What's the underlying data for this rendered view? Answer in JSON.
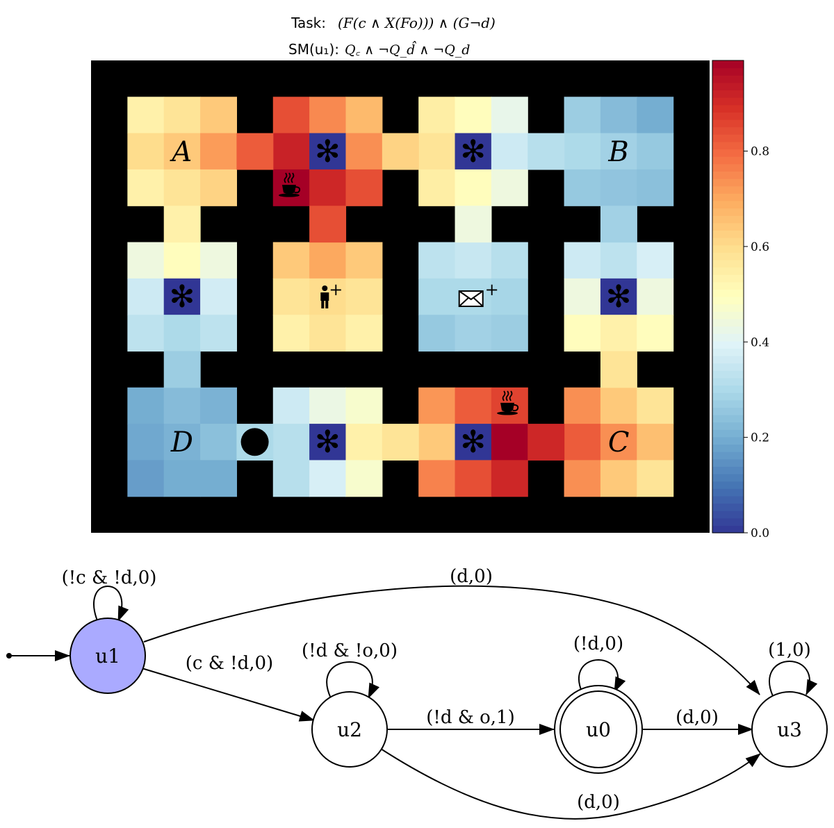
{
  "title": {
    "task_label": "Task:",
    "task_formula": "(F(c ∧ X(Fo))) ∧ (G¬d)",
    "sm_label": "SM(u₁):",
    "sm_formula": "Q꜀ ∧ ¬Q_d̂ ∧ ¬Q_d"
  },
  "colors": {
    "wall": "#000000",
    "stop_low": "#313695",
    "stop_high": "#a50026"
  },
  "grid": {
    "cols": 17,
    "rows": 13,
    "rooms": [
      {
        "cells": [
          [
            0.54,
            0.58,
            0.64
          ],
          [
            0.6,
            0.64,
            0.72
          ],
          [
            0.54,
            0.58,
            0.62
          ]
        ]
      },
      {
        "cells": [
          [
            0.84,
            0.75,
            0.67
          ],
          [
            0.92,
            0.0,
            0.74
          ],
          [
            0.99,
            0.91,
            0.84
          ]
        ]
      },
      {
        "cells": [
          [
            0.55,
            0.5,
            0.42
          ],
          [
            0.58,
            0.0,
            0.36
          ],
          [
            0.55,
            0.5,
            0.44
          ]
        ]
      },
      {
        "cells": [
          [
            0.27,
            0.23,
            0.2
          ],
          [
            0.3,
            0.28,
            0.26
          ],
          [
            0.26,
            0.25,
            0.24
          ]
        ]
      },
      {
        "cells": [
          [
            0.44,
            0.5,
            0.44
          ],
          [
            0.36,
            0.0,
            0.37
          ],
          [
            0.33,
            0.3,
            0.33
          ]
        ]
      },
      {
        "cells": [
          [
            0.64,
            0.7,
            0.64
          ],
          [
            0.58,
            0.6,
            0.58
          ],
          [
            0.54,
            0.58,
            0.54
          ]
        ]
      },
      {
        "cells": [
          [
            0.33,
            0.35,
            0.32
          ],
          [
            0.3,
            0.3,
            0.29
          ],
          [
            0.26,
            0.28,
            0.27
          ]
        ]
      },
      {
        "cells": [
          [
            0.36,
            0.33,
            0.38
          ],
          [
            0.44,
            0.0,
            0.44
          ],
          [
            0.5,
            0.54,
            0.5
          ]
        ]
      },
      {
        "cells": [
          [
            0.2,
            0.23,
            0.21
          ],
          [
            0.19,
            0.21,
            0.24
          ],
          [
            0.17,
            0.2,
            0.2
          ]
        ]
      },
      {
        "cells": [
          [
            0.36,
            0.43,
            0.47
          ],
          [
            0.32,
            0.0,
            0.54
          ],
          [
            0.32,
            0.38,
            0.47
          ]
        ]
      },
      {
        "cells": [
          [
            0.73,
            0.82,
            0.86
          ],
          [
            0.64,
            0.0,
            0.99
          ],
          [
            0.76,
            0.84,
            0.91
          ]
        ]
      },
      {
        "cells": [
          [
            0.74,
            0.64,
            0.58
          ],
          [
            0.82,
            0.74,
            0.66
          ],
          [
            0.74,
            0.64,
            0.58
          ]
        ]
      }
    ],
    "corridors": [
      {
        "c": 4,
        "r": 2,
        "v": 0.82
      },
      {
        "c": 8,
        "r": 2,
        "v": 0.62
      },
      {
        "c": 12,
        "r": 2,
        "v": 0.32
      },
      {
        "c": 2,
        "r": 4,
        "v": 0.54
      },
      {
        "c": 6,
        "r": 4,
        "v": 0.84
      },
      {
        "c": 10,
        "r": 4,
        "v": 0.44
      },
      {
        "c": 14,
        "r": 4,
        "v": 0.28
      },
      {
        "c": 2,
        "r": 8,
        "v": 0.27
      },
      {
        "c": 14,
        "r": 8,
        "v": 0.58
      },
      {
        "c": 4,
        "r": 10,
        "v": 0.3
      },
      {
        "c": 8,
        "r": 10,
        "v": 0.58
      },
      {
        "c": 12,
        "r": 10,
        "v": 0.91
      }
    ],
    "markers": [
      {
        "type": "letter",
        "text": "A",
        "c": 2,
        "r": 2
      },
      {
        "type": "letter",
        "text": "B",
        "c": 14,
        "r": 2
      },
      {
        "type": "letter",
        "text": "D",
        "c": 2,
        "r": 10
      },
      {
        "type": "letter",
        "text": "C",
        "c": 14,
        "r": 10
      },
      {
        "type": "asterisk",
        "text": "✻",
        "c": 6,
        "r": 2
      },
      {
        "type": "asterisk",
        "text": "✻",
        "c": 10,
        "r": 2
      },
      {
        "type": "asterisk",
        "text": "✻",
        "c": 2,
        "r": 6
      },
      {
        "type": "asterisk",
        "text": "✻",
        "c": 14,
        "r": 6
      },
      {
        "type": "asterisk",
        "text": "✻",
        "c": 6,
        "r": 10
      },
      {
        "type": "asterisk",
        "text": "✻",
        "c": 10,
        "r": 10
      },
      {
        "type": "coffee",
        "c": 5,
        "r": 3
      },
      {
        "type": "coffee",
        "c": 11,
        "r": 9
      },
      {
        "type": "person",
        "plus": "+",
        "c": 6,
        "r": 6
      },
      {
        "type": "mail",
        "plus": "+",
        "c": 10,
        "r": 6
      },
      {
        "type": "agent",
        "c": 4,
        "r": 10
      }
    ]
  },
  "colorbar": {
    "min": 0.0,
    "max": 0.99,
    "ticks": [
      {
        "value": 0.0,
        "label": "0.0"
      },
      {
        "value": 0.2,
        "label": "0.2"
      },
      {
        "value": 0.4,
        "label": "0.4"
      },
      {
        "value": 0.6,
        "label": "0.6"
      },
      {
        "value": 0.8,
        "label": "0.8"
      }
    ]
  },
  "automaton": {
    "states": [
      {
        "id": "u1",
        "label": "u1",
        "initial": true,
        "accepting": false,
        "highlighted": true
      },
      {
        "id": "u2",
        "label": "u2",
        "initial": false,
        "accepting": false,
        "highlighted": false
      },
      {
        "id": "u0",
        "label": "u0",
        "initial": false,
        "accepting": true,
        "highlighted": false
      },
      {
        "id": "u3",
        "label": "u3",
        "initial": false,
        "accepting": false,
        "highlighted": false
      }
    ],
    "transitions": [
      {
        "id": "u1-u1",
        "label": "(!c & !d,0)"
      },
      {
        "id": "u1-u3",
        "label": "(d,0)"
      },
      {
        "id": "u1-u2",
        "label": "(c & !d,0)"
      },
      {
        "id": "u2-u2",
        "label": "(!d & !o,0)"
      },
      {
        "id": "u2-u0",
        "label": "(!d & o,1)"
      },
      {
        "id": "u2-u3",
        "label": "(d,0)"
      },
      {
        "id": "u0-u0",
        "label": "(!d,0)"
      },
      {
        "id": "u0-u3",
        "label": "(d,0)"
      },
      {
        "id": "u3-u3",
        "label": "(1,0)"
      }
    ],
    "highlight_color": "#aaaaff"
  }
}
